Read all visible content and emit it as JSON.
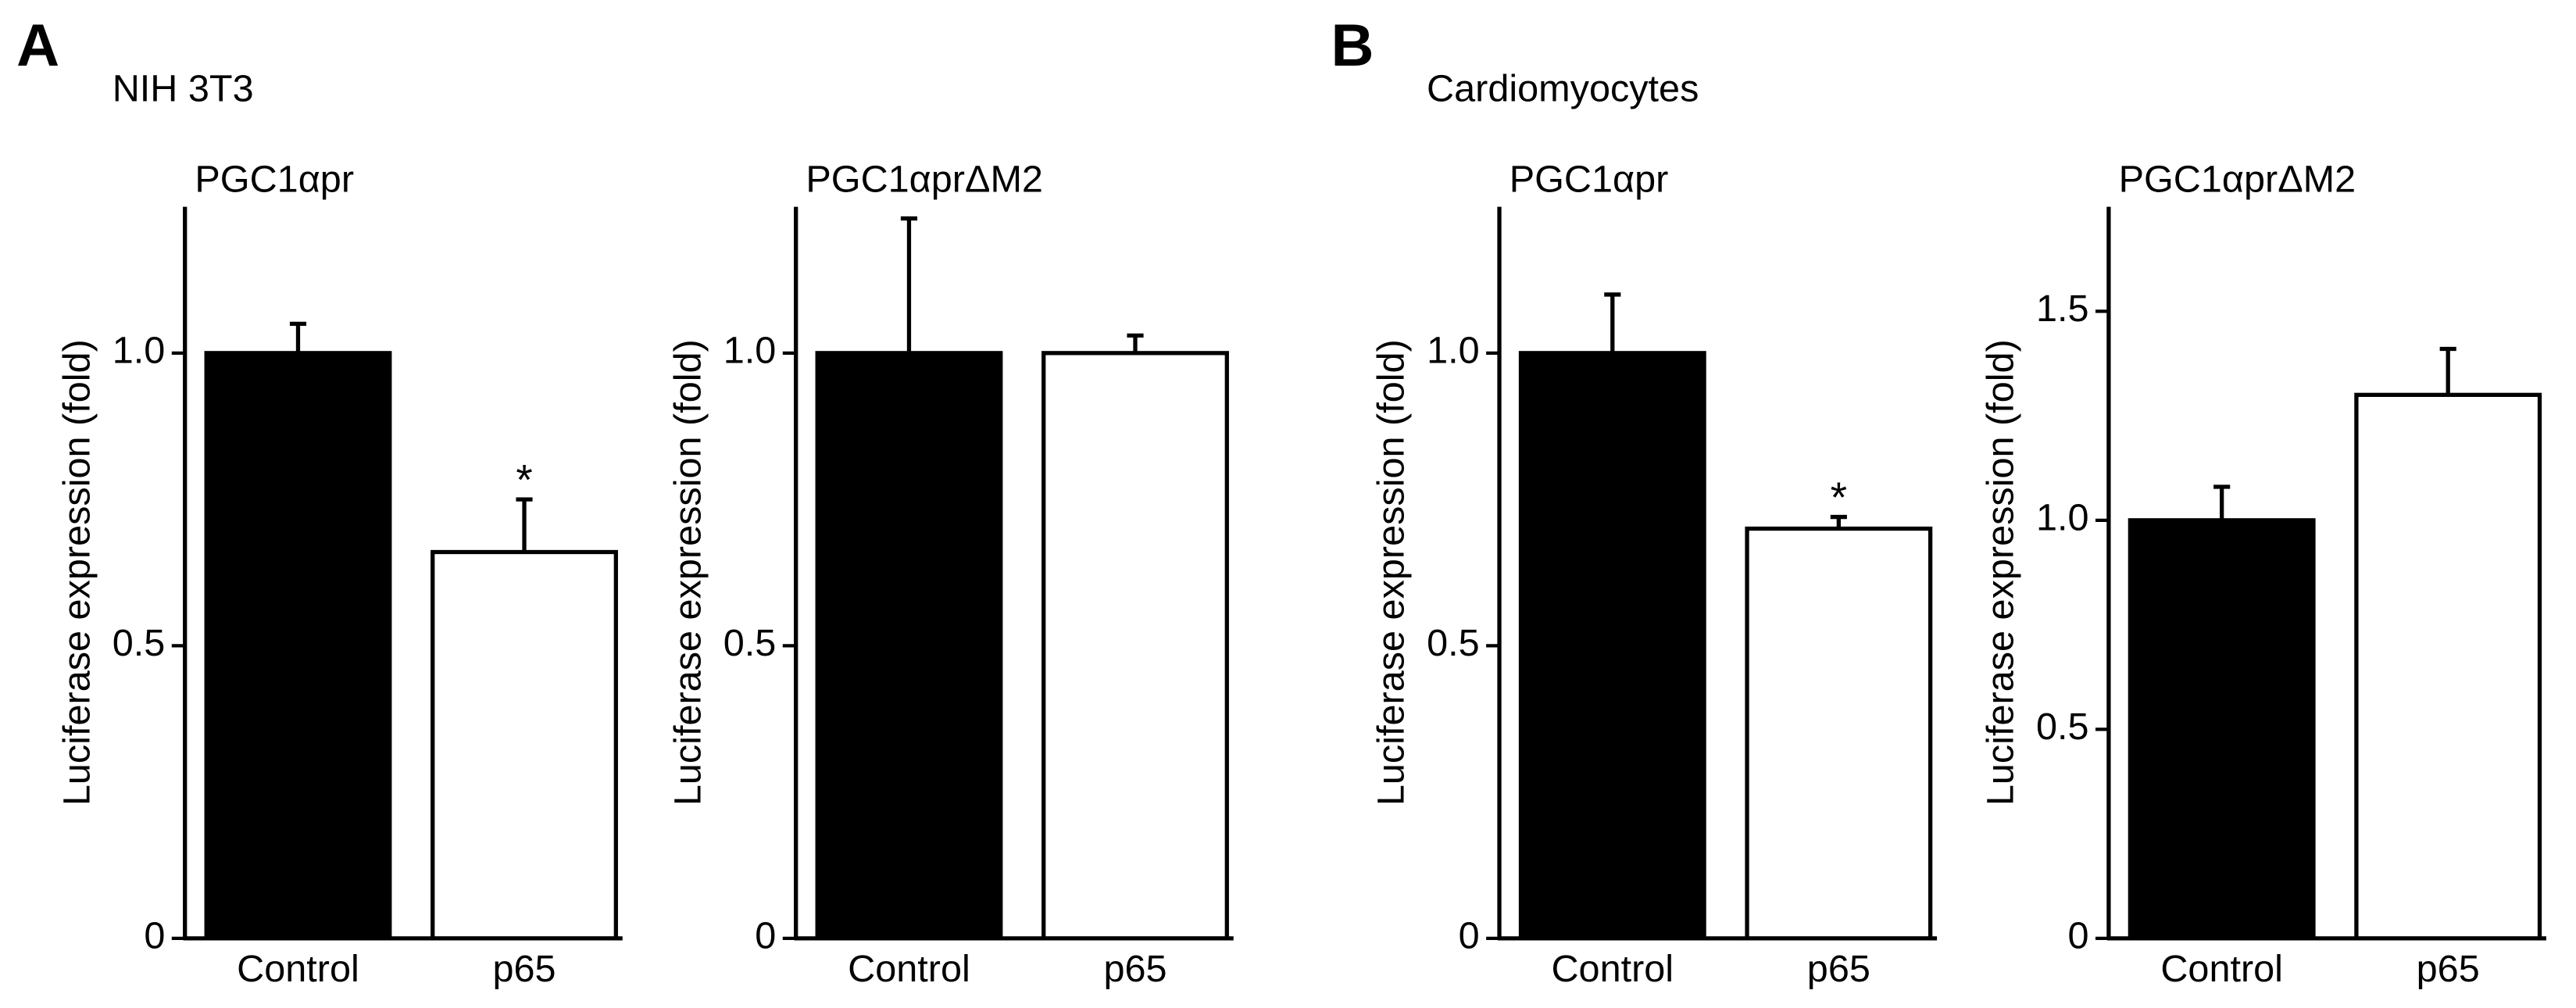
{
  "panels": [
    {
      "label": "A",
      "title": "NIH 3T3"
    },
    {
      "label": "B",
      "title": "Cardiomyocytes"
    }
  ],
  "chart_data": [
    {
      "type": "bar",
      "title": "PGC1αpr",
      "ylabel": "Luciferase expression (fold)",
      "categories": [
        "Control",
        "p65"
      ],
      "values": [
        1.0,
        0.66
      ],
      "errors": [
        0.05,
        0.09
      ],
      "colors": [
        "#000000",
        "#ffffff"
      ],
      "edge_color": "#000000",
      "ylim": [
        0,
        1.25
      ],
      "yticks": [
        0,
        0.5,
        {
          "value": 1,
          "label": "1.0"
        }
      ],
      "annotations": [
        {
          "x": "p65",
          "text": "*"
        }
      ]
    },
    {
      "type": "bar",
      "title": "PGC1αprΔM2",
      "ylabel": "Luciferase expression (fold)",
      "categories": [
        "Control",
        "p65"
      ],
      "values": [
        1.0,
        1.0
      ],
      "errors": [
        0.23,
        0.03
      ],
      "colors": [
        "#000000",
        "#ffffff"
      ],
      "edge_color": "#000000",
      "ylim": [
        0,
        1.25
      ],
      "yticks": [
        0,
        0.5,
        {
          "value": 1,
          "label": "1.0"
        }
      ]
    },
    {
      "type": "bar",
      "title": "PGC1αpr",
      "ylabel": "Luciferase expression (fold)",
      "categories": [
        "Control",
        "p65"
      ],
      "values": [
        1.0,
        0.7
      ],
      "errors": [
        0.1,
        0.02
      ],
      "colors": [
        "#000000",
        "#ffffff"
      ],
      "edge_color": "#000000",
      "ylim": [
        0,
        1.25
      ],
      "yticks": [
        0,
        0.5,
        {
          "value": 1,
          "label": "1.0"
        }
      ],
      "annotations": [
        {
          "x": "p65",
          "text": "*"
        }
      ]
    },
    {
      "type": "bar",
      "title": "PGC1αprΔM2",
      "ylabel": "Luciferase expression (fold)",
      "categories": [
        "Control",
        "p65"
      ],
      "values": [
        1.0,
        1.3
      ],
      "errors": [
        0.08,
        0.11
      ],
      "colors": [
        "#000000",
        "#ffffff"
      ],
      "edge_color": "#000000",
      "ylim": [
        0,
        1.75
      ],
      "yticks": [
        0,
        0.5,
        {
          "value": 1,
          "label": "1.0"
        },
        1.5
      ]
    }
  ]
}
